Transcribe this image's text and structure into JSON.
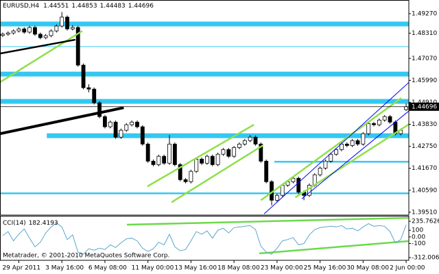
{
  "chart_data": [
    {
      "type": "candlestick",
      "title": "EURUSD,H4",
      "categories": [
        null,
        null,
        null,
        "29 Apr 2011",
        null,
        null,
        null,
        null,
        null,
        null,
        null,
        "3 May 16:00",
        null,
        null,
        null,
        null,
        null,
        null,
        null,
        "6 May 08:00",
        null,
        null,
        null,
        null,
        null,
        null,
        null,
        "11 May 00:00",
        null,
        null,
        null,
        null,
        null,
        null,
        null,
        "13 May 16:00",
        null,
        null,
        null,
        null,
        null,
        null,
        null,
        "18 May 08:00",
        null,
        null,
        null,
        null,
        null,
        null,
        null,
        "23 May 00:00",
        null,
        null,
        null,
        null,
        null,
        null,
        null,
        "25 May 16:00",
        null,
        null,
        null,
        null,
        null,
        null,
        null,
        "30 May 08:00",
        null,
        null,
        null,
        null,
        null,
        null,
        null,
        "2 Jun 00:00"
      ],
      "open": [
        1.482,
        1.4826,
        1.4832,
        1.4842,
        1.4852,
        1.4836,
        1.4859,
        1.4826,
        1.4809,
        1.4819,
        1.4842,
        1.4866,
        1.491,
        1.4852,
        1.4859,
        1.4674,
        1.4563,
        1.4556,
        1.4489,
        1.4421,
        1.4371,
        1.4394,
        1.432,
        1.4354,
        1.4381,
        1.4394,
        1.4371,
        1.4286,
        1.4202,
        1.4185,
        1.4226,
        1.4192,
        1.4286,
        1.4185,
        1.4111,
        1.4101,
        1.4152,
        1.4212,
        1.4192,
        1.4226,
        1.4185,
        1.4236,
        1.4259,
        1.4226,
        1.4269,
        1.4286,
        1.4303,
        1.432,
        1.4286,
        1.4202,
        1.4101,
        1.401,
        1.4034,
        1.4084,
        1.4101,
        1.4118,
        1.405,
        1.4034,
        1.4084,
        1.4135,
        1.4168,
        1.4202,
        1.4236,
        1.4259,
        1.4286,
        1.4279,
        1.4303,
        1.4286,
        1.4337,
        1.4387,
        1.4381,
        1.4404,
        1.4421,
        1.4394,
        1.4337,
        1.44551
      ],
      "high": [
        1.4834,
        1.484,
        1.485,
        1.486,
        1.486,
        1.4867,
        1.4867,
        1.4834,
        1.4827,
        1.485,
        1.4874,
        1.4935,
        1.4918,
        1.487,
        1.4867,
        1.4682,
        1.458,
        1.4564,
        1.4497,
        1.4429,
        1.4402,
        1.4402,
        1.4362,
        1.4389,
        1.4402,
        1.4402,
        1.4379,
        1.4294,
        1.421,
        1.4234,
        1.4234,
        1.433,
        1.4294,
        1.4193,
        1.4119,
        1.416,
        1.422,
        1.422,
        1.4234,
        1.4234,
        1.4244,
        1.4267,
        1.4267,
        1.4277,
        1.4294,
        1.4311,
        1.433,
        1.4328,
        1.4294,
        1.421,
        1.4109,
        1.4042,
        1.4092,
        1.4109,
        1.4126,
        1.4126,
        1.4058,
        1.4092,
        1.4143,
        1.4176,
        1.421,
        1.4244,
        1.4267,
        1.4294,
        1.4294,
        1.4311,
        1.4311,
        1.4345,
        1.4395,
        1.4395,
        1.4412,
        1.4429,
        1.4429,
        1.4402,
        1.4362,
        1.44853
      ],
      "low": [
        1.4812,
        1.4818,
        1.4824,
        1.4834,
        1.4828,
        1.4828,
        1.4818,
        1.4801,
        1.4801,
        1.4811,
        1.4834,
        1.4858,
        1.4844,
        1.4844,
        1.4666,
        1.4555,
        1.454,
        1.4481,
        1.4413,
        1.4363,
        1.4363,
        1.4312,
        1.4312,
        1.4346,
        1.4373,
        1.4363,
        1.4278,
        1.4194,
        1.4177,
        1.4177,
        1.4184,
        1.4184,
        1.4177,
        1.4103,
        1.4093,
        1.4093,
        1.4144,
        1.4184,
        1.4184,
        1.4177,
        1.4177,
        1.4228,
        1.4218,
        1.4218,
        1.4261,
        1.4278,
        1.4295,
        1.4278,
        1.4194,
        1.4093,
        1.3985,
        1.4002,
        1.4026,
        1.4076,
        1.4093,
        1.4042,
        1.401,
        1.4026,
        1.4076,
        1.4127,
        1.416,
        1.4194,
        1.4228,
        1.4251,
        1.4271,
        1.4271,
        1.4278,
        1.4278,
        1.4329,
        1.4373,
        1.4373,
        1.4396,
        1.4386,
        1.4329,
        1.4329,
        1.44483
      ],
      "close": [
        1.4826,
        1.4832,
        1.4842,
        1.4852,
        1.4836,
        1.4859,
        1.4826,
        1.4809,
        1.4819,
        1.4842,
        1.4866,
        1.491,
        1.4852,
        1.4859,
        1.4674,
        1.4563,
        1.4556,
        1.4489,
        1.4421,
        1.4371,
        1.4394,
        1.432,
        1.4354,
        1.4381,
        1.4394,
        1.4371,
        1.4286,
        1.4202,
        1.4185,
        1.4226,
        1.4192,
        1.4286,
        1.4185,
        1.4111,
        1.4101,
        1.4152,
        1.4212,
        1.4192,
        1.4226,
        1.4185,
        1.4236,
        1.4259,
        1.4226,
        1.4269,
        1.4286,
        1.4303,
        1.432,
        1.4286,
        1.4202,
        1.4101,
        1.401,
        1.4034,
        1.4084,
        1.4101,
        1.4118,
        1.405,
        1.4034,
        1.4084,
        1.4135,
        1.4168,
        1.4202,
        1.4236,
        1.4259,
        1.4286,
        1.4279,
        1.4303,
        1.4286,
        1.4337,
        1.4387,
        1.4381,
        1.4404,
        1.4421,
        1.4394,
        1.4337,
        1.4354,
        1.44696
      ],
      "ylim": [
        1.3937,
        1.4994
      ],
      "yticks": [
        {
          "value": 1.4927,
          "label": "1.49270"
        },
        {
          "value": 1.4831,
          "label": "1.48310"
        },
        {
          "value": 1.4707,
          "label": "1.47070"
        },
        {
          "value": 1.4599,
          "label": "1.45990"
        },
        {
          "value": 1.4491,
          "label": "1.44910"
        },
        {
          "value": 1.4383,
          "label": "1.43830"
        },
        {
          "value": 1.4275,
          "label": "1.42750"
        },
        {
          "value": 1.4167,
          "label": "1.41670"
        },
        {
          "value": 1.4059,
          "label": "1.40590"
        },
        {
          "value": 1.3951,
          "label": "1.39510"
        }
      ],
      "hlines": [
        {
          "price": 1.4876,
          "from": -0.5,
          "color": "#33c8f2",
          "weight": "band"
        },
        {
          "price": 1.4765,
          "from": -0.5,
          "color": "#33c8f2",
          "weight": "thin"
        },
        {
          "price": 1.463,
          "from": -0.5,
          "color": "#33c8f2",
          "weight": "band"
        },
        {
          "price": 1.4496,
          "from": -0.5,
          "color": "#33c8f2",
          "weight": "band"
        },
        {
          "price": 1.4327,
          "from": 8.2,
          "color": "#33c8f2",
          "weight": "band"
        },
        {
          "price": 1.4199,
          "from": 50.5,
          "color": "#33c8f2",
          "weight": "medium"
        },
        {
          "price": 1.4044,
          "from": -0.5,
          "color": "#33c8f2",
          "weight": "medium"
        }
      ],
      "trendlines": [
        {
          "from": [
            -0.5,
            1.459
          ],
          "to": [
            14.8,
            1.4842
          ],
          "color": "#8ee04a",
          "weight": "medium"
        },
        {
          "from": [
            -0.5,
            1.4731
          ],
          "to": [
            13.5,
            1.4799
          ],
          "color": "#000000",
          "weight": "medium"
        },
        {
          "from": [
            -0.5,
            1.4337
          ],
          "to": [
            22.5,
            1.4465
          ],
          "color": "#000000",
          "weight": "thick"
        },
        {
          "from": [
            26.9,
            1.4078
          ],
          "to": [
            46.7,
            1.4381
          ],
          "color": "#8ee04a",
          "weight": "medium"
        },
        {
          "from": [
            31.4,
            1.4
          ],
          "to": [
            48.4,
            1.428
          ],
          "color": "#8ee04a",
          "weight": "medium"
        },
        {
          "from": [
            48.0,
            1.401
          ],
          "to": [
            74.1,
            1.4512
          ],
          "color": "#8ee04a",
          "weight": "medium"
        },
        {
          "from": [
            54.4,
            1.4024
          ],
          "to": [
            75.8,
            1.4388
          ],
          "color": "#8ee04a",
          "weight": "medium"
        },
        {
          "from": [
            48.6,
            1.3943
          ],
          "to": [
            75.8,
            1.4596
          ],
          "color": "#0000ff",
          "weight": "thin"
        },
        {
          "from": [
            55.6,
            1.4017
          ],
          "to": [
            75.8,
            1.4455
          ],
          "color": "#0000ff",
          "weight": "thin"
        }
      ]
    },
    {
      "type": "line",
      "title": "CCI(14)",
      "series": [
        {
          "name": "CCI(14)",
          "color": "#5aa6cf",
          "values": [
            20,
            80,
            -60,
            40,
            120,
            -20,
            -150,
            -80,
            60,
            150,
            210,
            150,
            -40,
            30,
            -230,
            -260,
            -180,
            -200,
            -170,
            -190,
            -120,
            -160,
            -90,
            -30,
            -20,
            -60,
            -170,
            -220,
            -180,
            -80,
            -120,
            40,
            -150,
            -210,
            -190,
            -60,
            80,
            40,
            90,
            -20,
            100,
            130,
            60,
            140,
            150,
            160,
            170,
            110,
            -140,
            -230,
            -260,
            -170,
            -60,
            -40,
            -10,
            -120,
            -100,
            30,
            110,
            140,
            150,
            160,
            150,
            170,
            120,
            130,
            90,
            150,
            200,
            160,
            170,
            160,
            80,
            -90,
            -40,
            182.4193
          ]
        }
      ],
      "ylim": [
        -353.3,
        308.1
      ],
      "yticks": [
        235.7626,
        100,
        {
          "value": 0,
          "label": "0.00"
        },
        -100,
        -312.0063
      ],
      "trendlines": [
        {
          "from": [
            23.1,
            184
          ],
          "to": [
            75.5,
            287
          ],
          "color": "#6cd94a",
          "weight": "medium"
        },
        {
          "from": [
            47.7,
            -250
          ],
          "to": [
            75.4,
            -64
          ],
          "color": "#6cd94a",
          "weight": "medium"
        }
      ],
      "annotation": "Metatrader, © 2001-2010 MetaQuotes Software Corp."
    }
  ]
}
